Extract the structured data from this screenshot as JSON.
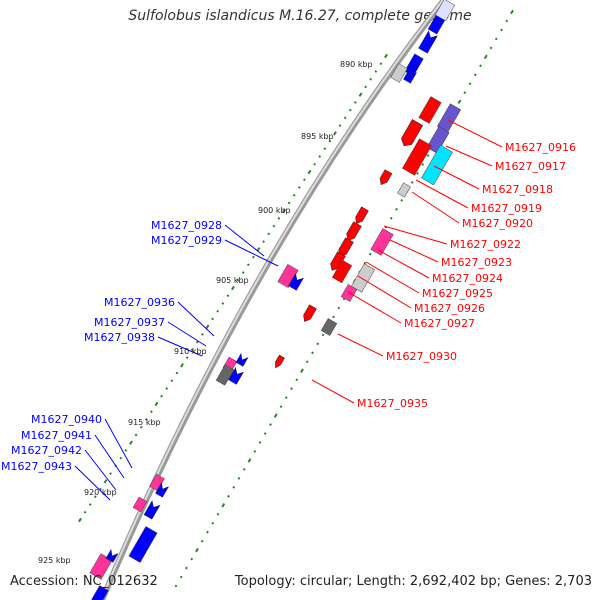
{
  "title": "Sulfolobus islandicus M.16.27, complete genome",
  "footer": {
    "accession": "Accession: NC_012632",
    "summary": "Topology: circular; Length: 2,692,402 bp; Genes: 2,703"
  },
  "colors": {
    "forward": "#ff0000",
    "reverse": "#0000ff",
    "rna": "#ff3399",
    "pseudo": "#666666",
    "misc": "#cccccc",
    "purple": "#6655cc",
    "cyan": "#00e5ff",
    "backbone": "#888888",
    "tick": "#228822"
  },
  "kbp": [
    "890 kbp",
    "895 kbp",
    "900 kbp",
    "905 kbp",
    "910 kbp",
    "915 kbp",
    "920 kbp",
    "925 kbp"
  ],
  "right_labels": [
    "M1627_0916",
    "M1627_0917",
    "M1627_0918",
    "M1627_0919",
    "M1627_0920",
    "M1627_0922",
    "M1627_0923",
    "M1627_0924",
    "M1627_0925",
    "M1627_0926",
    "M1627_0927",
    "M1627_0930",
    "M1627_0935"
  ],
  "left_labels": [
    "M1627_0928",
    "M1627_0929",
    "M1627_0936",
    "M1627_0937",
    "M1627_0938",
    "M1627_0940",
    "M1627_0941",
    "M1627_0942",
    "M1627_0943"
  ]
}
